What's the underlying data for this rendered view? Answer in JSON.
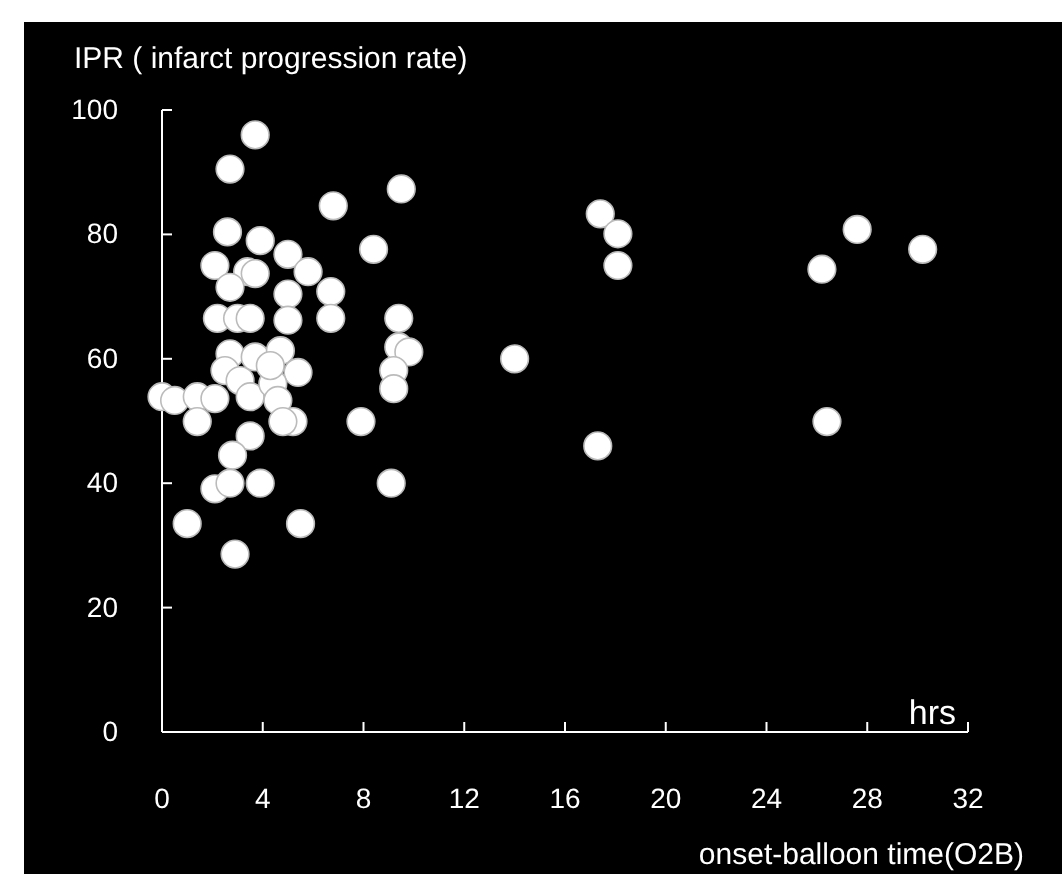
{
  "chart_data": {
    "type": "scatter",
    "ylabel": "IPR ( infarct progression rate)",
    "xlabel": "onset-balloon time(O2B)",
    "annotations": [
      "hrs"
    ],
    "xlim": [
      0,
      32
    ],
    "xticks": [
      0,
      4,
      8,
      12,
      16,
      20,
      24,
      28,
      32
    ],
    "ylim": [
      0,
      100
    ],
    "yticks": [
      0,
      20,
      40,
      60,
      80,
      100
    ],
    "grid": false,
    "marker": "circle",
    "series": [
      {
        "color": "#ffffff",
        "x": [
          3.7,
          2.7,
          2.6,
          3.9,
          5.0,
          5.8,
          2.1,
          3.4,
          2.7,
          3.7,
          6.7,
          5.0,
          2.2,
          3.0,
          3.5,
          5.0,
          6.7,
          6.8,
          8.4,
          9.5,
          9.4,
          9.4,
          9.8,
          9.2,
          9.2,
          9.1,
          7.9,
          14.0,
          17.4,
          18.1,
          18.1,
          17.3,
          26.2,
          27.6,
          30.2,
          26.4,
          0,
          0.5,
          1.4,
          2.1,
          1.4,
          2.7,
          3.7,
          2.5,
          3.1,
          3.5,
          4.7,
          5.4,
          4.4,
          4.6,
          5.2,
          4.8,
          3.5,
          2.8,
          2.1,
          2.7,
          3.9,
          1.0,
          5.5,
          2.9,
          4.3
        ],
        "values": [
          96,
          90.5,
          80.4,
          79,
          76.8,
          74,
          75,
          74,
          71.5,
          73.7,
          70.8,
          70.4,
          66.5,
          66.5,
          66.5,
          66.2,
          66.5,
          84.6,
          77.6,
          87.3,
          66.5,
          61.9,
          61.1,
          58.1,
          55.2,
          40,
          49.9,
          60,
          83.3,
          80.1,
          75,
          46,
          74.4,
          80.8,
          77.6,
          49.9,
          53.9,
          53.3,
          53.9,
          53.6,
          49.9,
          60.8,
          60.3,
          58.1,
          56.5,
          53.9,
          61.3,
          57.8,
          56,
          53.3,
          49.9,
          49.9,
          47.6,
          44.5,
          39.1,
          40,
          40,
          33.5,
          33.5,
          28.6,
          58.9
        ]
      }
    ]
  }
}
